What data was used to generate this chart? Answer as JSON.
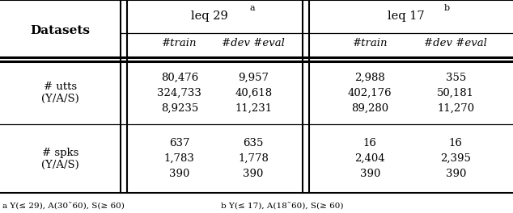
{
  "rows_utts": [
    [
      "80,476",
      "9,957",
      "2,988",
      "355"
    ],
    [
      "324,733",
      "40,618",
      "402,176",
      "50,181"
    ],
    [
      "8,9235",
      "11,231",
      "89,280",
      "11,270"
    ]
  ],
  "rows_spks": [
    [
      "637",
      "635",
      "16",
      "16"
    ],
    [
      "1,783",
      "1,778",
      "2,404",
      "2,395"
    ],
    [
      "390",
      "390",
      "390",
      "390"
    ]
  ],
  "footnote_a": "a Y(≤ 29), A(30˜60), S(≥ 60)",
  "footnote_b": "b Y(≤ 17), A(18˜60), S(≥ 60)",
  "bg_color": "#ffffff"
}
